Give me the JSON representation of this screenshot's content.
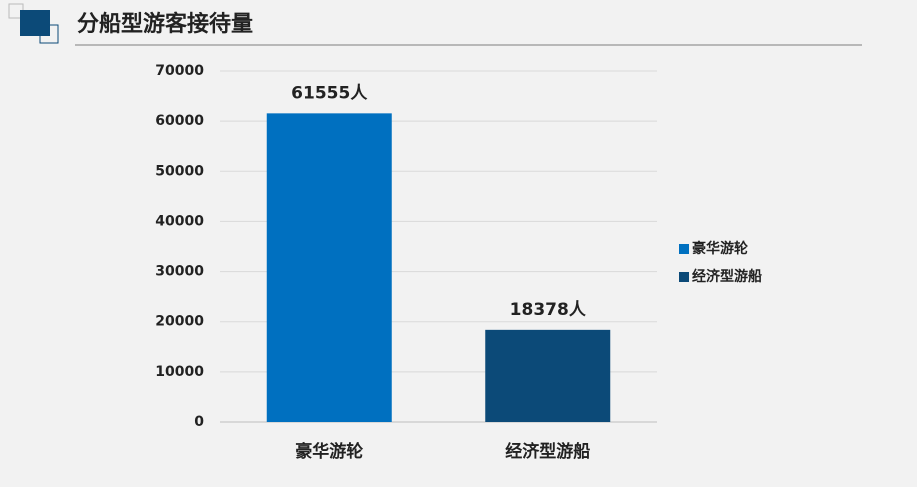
{
  "chart_data": {
    "type": "bar",
    "title": "分船型游客接待量",
    "categories": [
      "豪华游轮",
      "经济型游船"
    ],
    "series": [
      {
        "name": "豪华游轮",
        "color": "#0070c0",
        "values": [
          61555,
          null
        ],
        "value_labels": [
          "61555人",
          null
        ]
      },
      {
        "name": "经济型游船",
        "color": "#0c4a78",
        "values": [
          null,
          18378
        ],
        "value_labels": [
          null,
          "18378人"
        ]
      }
    ],
    "ylim": [
      0,
      70000
    ],
    "yticks": [
      0,
      10000,
      20000,
      30000,
      40000,
      50000,
      60000,
      70000
    ],
    "grid": true,
    "legend": "right"
  }
}
